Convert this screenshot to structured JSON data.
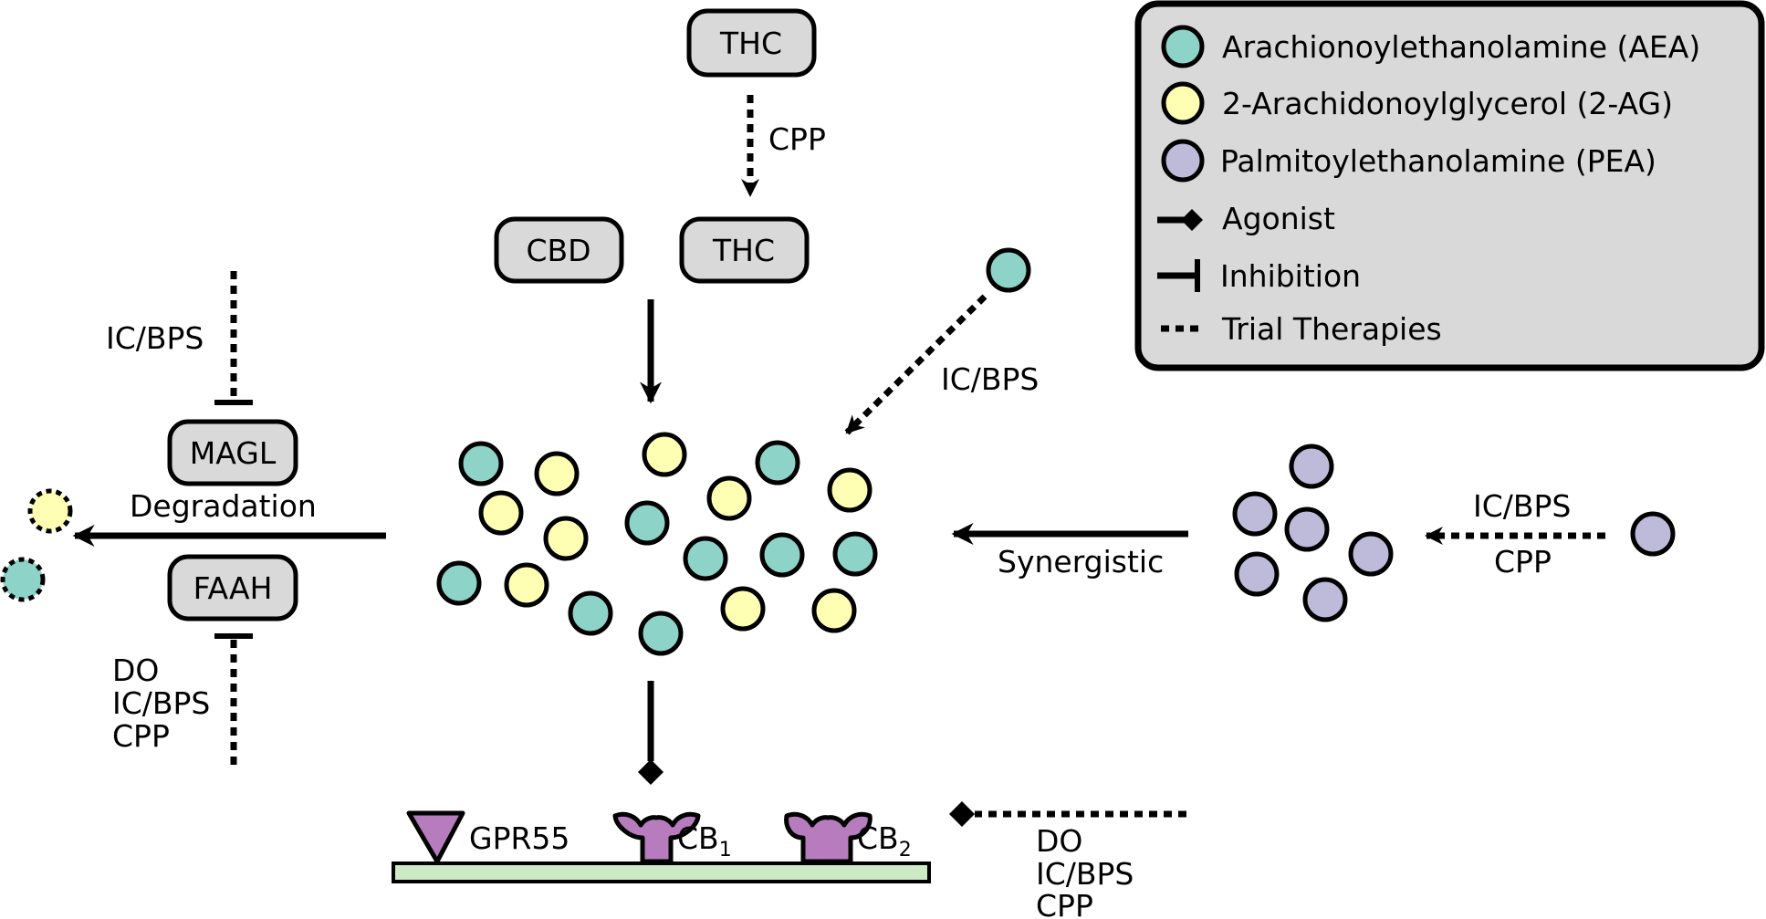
{
  "legend": {
    "items": [
      {
        "kind": "dot",
        "color": "aea",
        "label": "Arachionoylethanolamine (AEA)"
      },
      {
        "kind": "dot",
        "color": "twoag",
        "label": "2-Arachidonoylglycerol (2-AG)"
      },
      {
        "kind": "dot",
        "color": "pea",
        "label": "Palmitoylethanolamine (PEA)"
      },
      {
        "kind": "agonist",
        "label": "Agonist"
      },
      {
        "kind": "inhibition",
        "label": "Inhibition"
      },
      {
        "kind": "dotted",
        "label": "Trial Therapies"
      }
    ]
  },
  "colors": {
    "aea": "#8dd3c7",
    "twoag": "#ffffb3",
    "pea": "#bebada",
    "box": "#d9d9d9",
    "receptor": "#b77cbd",
    "membrane": "#ccebc5",
    "legend_bg": "#d9d9d9"
  },
  "boxes": {
    "thc_top": "THC",
    "cbd": "CBD",
    "thc_mid": "THC",
    "magl": "MAGL",
    "faah": "FAAH"
  },
  "labels": {
    "cpp_top": "CPP",
    "icbps_aea": "IC/BPS",
    "icbps_magl": "IC/BPS",
    "degradation": "Degradation",
    "faah_conditions": [
      "DO",
      "IC/BPS",
      "CPP"
    ],
    "synergistic": "Synergistic",
    "pea_conditions": [
      "IC/BPS",
      "CPP"
    ],
    "receptor_conditions": [
      "DO",
      "IC/BPS",
      "CPP"
    ]
  },
  "receptors": {
    "gpr55": "GPR55",
    "cb1": {
      "base": "CB",
      "sub": "1"
    },
    "cb2": {
      "base": "CB",
      "sub": "2"
    }
  },
  "icons": {
    "gpr55": "gpr55-receptor-icon",
    "cb1": "cb1-receptor-icon",
    "cb2": "cb2-receptor-icon"
  }
}
